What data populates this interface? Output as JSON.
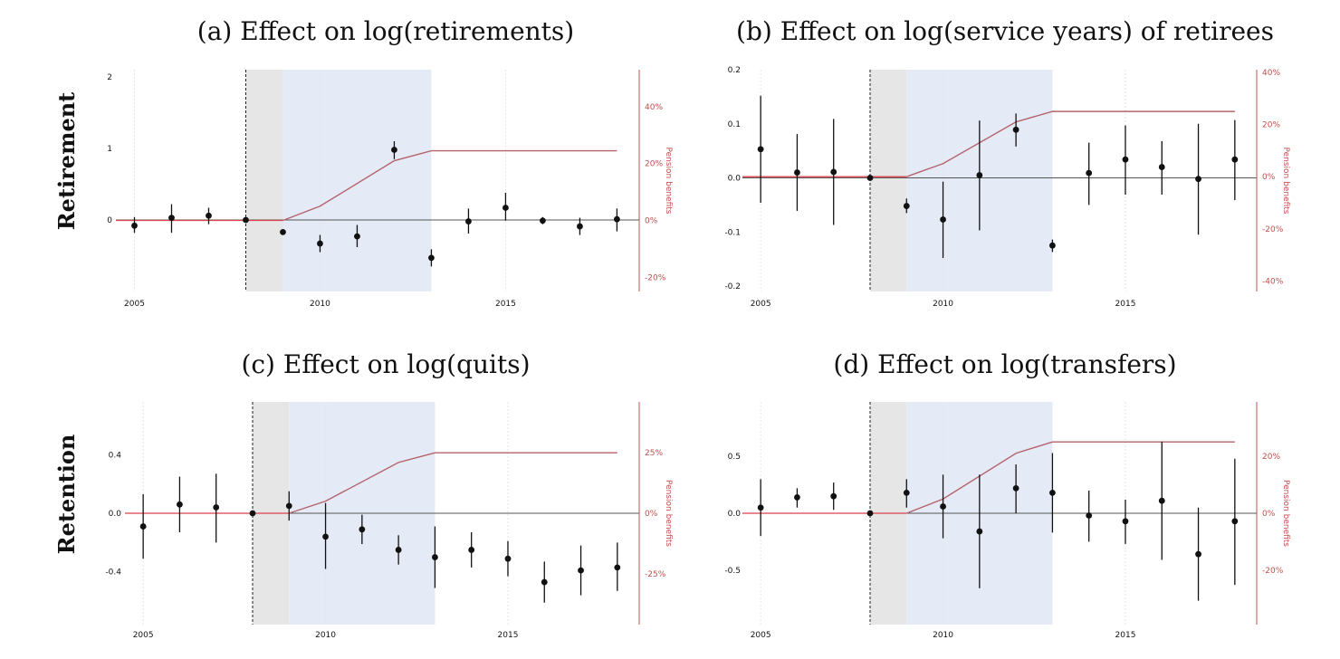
{
  "row_labels": [
    "Retirement",
    "Retention"
  ],
  "colors": {
    "point": "#111111",
    "pension_line": "#b5636b",
    "pre_shade": "#e6e6e6",
    "post_shade": "#e4ebf6",
    "zero_line": "#555555",
    "right_axis": "#c0504d",
    "grid": "#e6e6e6"
  },
  "chart_data": [
    {
      "type": "scatter",
      "title": "(a) Effect on log(retirements)",
      "right_axis_label": "Pension benefits",
      "xlim": [
        2004.5,
        2018.6
      ],
      "ylim": [
        -1.0,
        2.1
      ],
      "right_ylim": [
        -25,
        53
      ],
      "x_ticks": [
        2005,
        2010,
        2015
      ],
      "x_tick_labels": [
        "2005",
        "2010",
        "2015"
      ],
      "y_ticks": [
        0,
        1,
        2
      ],
      "y_tick_labels": [
        "0",
        "1",
        "2"
      ],
      "right_ticks": [
        -20,
        0,
        20,
        40
      ],
      "right_tick_labels": [
        "-20%",
        "0%",
        "20%",
        "40%"
      ],
      "reference_year": 2008,
      "pre_shade": [
        2008,
        2009
      ],
      "post_shade": [
        2009,
        2013
      ],
      "points": [
        {
          "x": 2005,
          "y": -0.08,
          "lo": -0.18,
          "hi": 0.04
        },
        {
          "x": 2006,
          "y": 0.03,
          "lo": -0.18,
          "hi": 0.22
        },
        {
          "x": 2007,
          "y": 0.06,
          "lo": -0.06,
          "hi": 0.17
        },
        {
          "x": 2008,
          "y": 0.0,
          "lo": 0.0,
          "hi": 0.0
        },
        {
          "x": 2009,
          "y": -0.17,
          "lo": -0.17,
          "hi": -0.17
        },
        {
          "x": 2010,
          "y": -0.33,
          "lo": -0.45,
          "hi": -0.21
        },
        {
          "x": 2011,
          "y": -0.23,
          "lo": -0.38,
          "hi": -0.07
        },
        {
          "x": 2012,
          "y": 0.98,
          "lo": 0.85,
          "hi": 1.1
        },
        {
          "x": 2013,
          "y": -0.53,
          "lo": -0.65,
          "hi": -0.41
        },
        {
          "x": 2014,
          "y": -0.02,
          "lo": -0.19,
          "hi": 0.16
        },
        {
          "x": 2015,
          "y": 0.17,
          "lo": -0.01,
          "hi": 0.38
        },
        {
          "x": 2016,
          "y": -0.01,
          "lo": -0.06,
          "hi": 0.04
        },
        {
          "x": 2017,
          "y": -0.09,
          "lo": -0.21,
          "hi": 0.03
        },
        {
          "x": 2018,
          "y": 0.01,
          "lo": -0.16,
          "hi": 0.16
        }
      ],
      "pension": {
        "x": [
          2008,
          2009,
          2010,
          2012,
          2013,
          2018
        ],
        "y": [
          0,
          0,
          5,
          21,
          24.5,
          24.5
        ]
      }
    },
    {
      "type": "scatter",
      "title": "(b) Effect on log(service years) of retirees",
      "right_axis_label": "Pension benefits",
      "xlim": [
        2004.5,
        2018.6
      ],
      "ylim": [
        -0.21,
        0.2
      ],
      "right_ylim": [
        -44,
        41
      ],
      "x_ticks": [
        2005,
        2010,
        2015
      ],
      "x_tick_labels": [
        "2005",
        "2010",
        "2015"
      ],
      "y_ticks": [
        -0.2,
        -0.1,
        0.0,
        0.1,
        0.2
      ],
      "y_tick_labels": [
        "-0.2",
        "-0.1",
        "0.0",
        "0.1",
        "0.2"
      ],
      "right_ticks": [
        -40,
        -20,
        0,
        20,
        40
      ],
      "right_tick_labels": [
        "-40%",
        "-20%",
        "0%",
        "20%",
        "40%"
      ],
      "reference_year": 2008,
      "pre_shade": [
        2008,
        2009
      ],
      "post_shade": [
        2009,
        2013
      ],
      "points": [
        {
          "x": 2005,
          "y": 0.053,
          "lo": -0.046,
          "hi": 0.152
        },
        {
          "x": 2006,
          "y": 0.01,
          "lo": -0.061,
          "hi": 0.081
        },
        {
          "x": 2007,
          "y": 0.011,
          "lo": -0.087,
          "hi": 0.109
        },
        {
          "x": 2008,
          "y": 0.0,
          "lo": 0.0,
          "hi": 0.0
        },
        {
          "x": 2009,
          "y": -0.052,
          "lo": -0.065,
          "hi": -0.038
        },
        {
          "x": 2010,
          "y": -0.077,
          "lo": -0.148,
          "hi": -0.007
        },
        {
          "x": 2011,
          "y": 0.005,
          "lo": -0.097,
          "hi": 0.106
        },
        {
          "x": 2012,
          "y": 0.089,
          "lo": 0.058,
          "hi": 0.119
        },
        {
          "x": 2013,
          "y": -0.125,
          "lo": -0.137,
          "hi": -0.114
        },
        {
          "x": 2014,
          "y": 0.009,
          "lo": -0.05,
          "hi": 0.065
        },
        {
          "x": 2015,
          "y": 0.034,
          "lo": -0.031,
          "hi": 0.097
        },
        {
          "x": 2016,
          "y": 0.02,
          "lo": -0.031,
          "hi": 0.068
        },
        {
          "x": 2017,
          "y": -0.002,
          "lo": -0.105,
          "hi": 0.1
        },
        {
          "x": 2018,
          "y": 0.034,
          "lo": -0.041,
          "hi": 0.107
        }
      ],
      "pension": {
        "x": [
          2008,
          2009,
          2010,
          2012,
          2013,
          2018
        ],
        "y": [
          0,
          0,
          5,
          21,
          25,
          25
        ]
      }
    },
    {
      "type": "scatter",
      "title": "(c) Effect on log(quits)",
      "right_axis_label": "Pension benefits",
      "xlim": [
        2004.5,
        2018.6
      ],
      "ylim": [
        -0.76,
        0.76
      ],
      "right_ylim": [
        -46,
        46
      ],
      "x_ticks": [
        2005,
        2010,
        2015
      ],
      "x_tick_labels": [
        "2005",
        "2010",
        "2015"
      ],
      "y_ticks": [
        -0.4,
        0.0,
        0.4
      ],
      "y_tick_labels": [
        "-0.4",
        "0.0",
        "0.4"
      ],
      "right_ticks": [
        -25,
        0,
        25
      ],
      "right_tick_labels": [
        "-25%",
        "0%",
        "25%"
      ],
      "reference_year": 2008,
      "pre_shade": [
        2008,
        2009
      ],
      "post_shade": [
        2009,
        2013
      ],
      "points": [
        {
          "x": 2005,
          "y": -0.09,
          "lo": -0.31,
          "hi": 0.13
        },
        {
          "x": 2006,
          "y": 0.06,
          "lo": -0.13,
          "hi": 0.25
        },
        {
          "x": 2007,
          "y": 0.04,
          "lo": -0.2,
          "hi": 0.27
        },
        {
          "x": 2008,
          "y": 0.0,
          "lo": 0.0,
          "hi": 0.0
        },
        {
          "x": 2009,
          "y": 0.05,
          "lo": -0.05,
          "hi": 0.15
        },
        {
          "x": 2010,
          "y": -0.16,
          "lo": -0.38,
          "hi": 0.07
        },
        {
          "x": 2011,
          "y": -0.11,
          "lo": -0.21,
          "hi": -0.01
        },
        {
          "x": 2012,
          "y": -0.25,
          "lo": -0.35,
          "hi": -0.15
        },
        {
          "x": 2013,
          "y": -0.3,
          "lo": -0.51,
          "hi": -0.09
        },
        {
          "x": 2014,
          "y": -0.25,
          "lo": -0.37,
          "hi": -0.13
        },
        {
          "x": 2015,
          "y": -0.31,
          "lo": -0.43,
          "hi": -0.19
        },
        {
          "x": 2016,
          "y": -0.47,
          "lo": -0.61,
          "hi": -0.33
        },
        {
          "x": 2017,
          "y": -0.39,
          "lo": -0.56,
          "hi": -0.22
        },
        {
          "x": 2018,
          "y": -0.37,
          "lo": -0.53,
          "hi": -0.2
        }
      ],
      "pension": {
        "x": [
          2008,
          2009,
          2010,
          2012,
          2013,
          2018
        ],
        "y": [
          0,
          0,
          5,
          21,
          25,
          25
        ]
      }
    },
    {
      "type": "scatter",
      "title": "(d) Effect on log(transfers)",
      "right_axis_label": "Pension benefits",
      "xlim": [
        2004.5,
        2018.6
      ],
      "ylim": [
        -0.98,
        0.98
      ],
      "right_ylim": [
        -39,
        39
      ],
      "x_ticks": [
        2005,
        2010,
        2015
      ],
      "x_tick_labels": [
        "2005",
        "2010",
        "2015"
      ],
      "y_ticks": [
        -0.5,
        0.0,
        0.5
      ],
      "y_tick_labels": [
        "-0.5",
        "0.0",
        "0.5"
      ],
      "right_ticks": [
        -20,
        0,
        20
      ],
      "right_tick_labels": [
        "-20%",
        "0%",
        "20%"
      ],
      "reference_year": 2008,
      "pre_shade": [
        2008,
        2009
      ],
      "post_shade": [
        2009,
        2013
      ],
      "points": [
        {
          "x": 2005,
          "y": 0.05,
          "lo": -0.2,
          "hi": 0.3
        },
        {
          "x": 2006,
          "y": 0.14,
          "lo": 0.05,
          "hi": 0.22
        },
        {
          "x": 2007,
          "y": 0.15,
          "lo": 0.03,
          "hi": 0.27
        },
        {
          "x": 2008,
          "y": 0.0,
          "lo": 0.0,
          "hi": 0.0
        },
        {
          "x": 2009,
          "y": 0.18,
          "lo": 0.05,
          "hi": 0.3
        },
        {
          "x": 2010,
          "y": 0.06,
          "lo": -0.22,
          "hi": 0.34
        },
        {
          "x": 2011,
          "y": -0.16,
          "lo": -0.66,
          "hi": 0.34
        },
        {
          "x": 2012,
          "y": 0.22,
          "lo": 0.0,
          "hi": 0.43
        },
        {
          "x": 2013,
          "y": 0.18,
          "lo": -0.17,
          "hi": 0.53
        },
        {
          "x": 2014,
          "y": -0.02,
          "lo": -0.25,
          "hi": 0.2
        },
        {
          "x": 2015,
          "y": -0.07,
          "lo": -0.27,
          "hi": 0.12
        },
        {
          "x": 2016,
          "y": 0.11,
          "lo": -0.41,
          "hi": 0.63
        },
        {
          "x": 2017,
          "y": -0.36,
          "lo": -0.77,
          "hi": 0.05
        },
        {
          "x": 2018,
          "y": -0.07,
          "lo": -0.63,
          "hi": 0.48
        }
      ],
      "pension": {
        "x": [
          2008,
          2009,
          2010,
          2012,
          2013,
          2018
        ],
        "y": [
          0,
          0,
          5,
          21,
          25,
          25
        ]
      }
    }
  ]
}
